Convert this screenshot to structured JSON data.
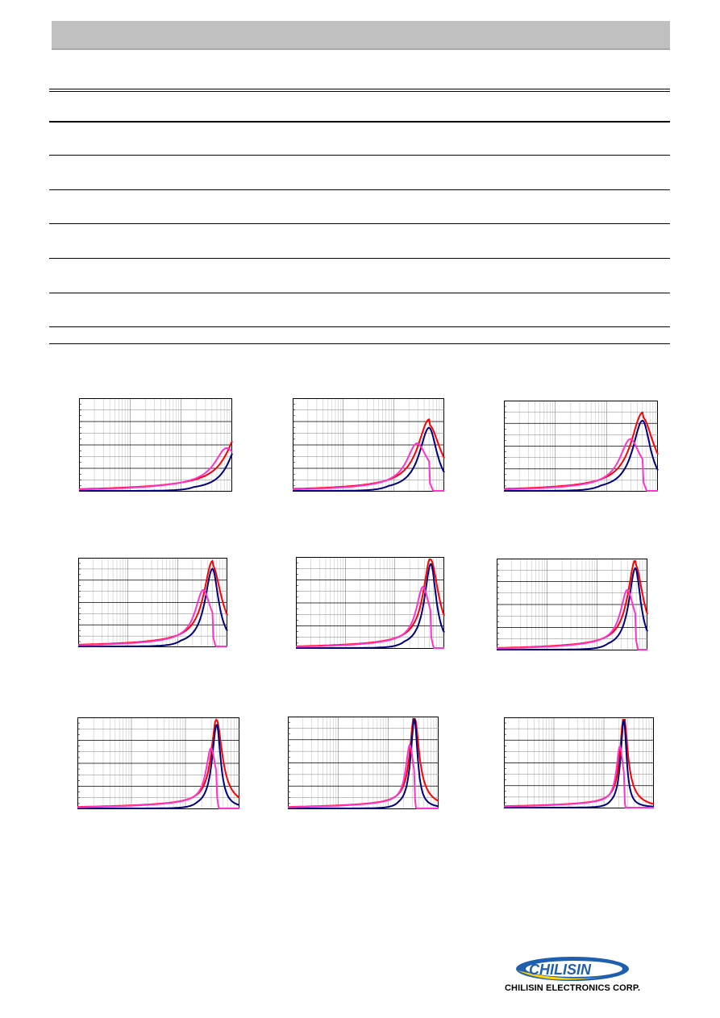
{
  "company": {
    "logo_word": "CHILISIN",
    "name": "CHILISIN ELECTRONICS CORP."
  },
  "colors": {
    "header_band": "#c0c0c0",
    "series_red": "#ff0000",
    "series_navy": "#000080",
    "series_magenta": "#ff33cc",
    "logo_blue": "#1f5fb0",
    "logo_yellow": "#ffd200"
  },
  "chart_data": [
    {
      "type": "line",
      "peak": 1.05,
      "tail": 1.0,
      "amp": 0.55,
      "width": 0.1,
      "xscale": "log",
      "grid": "horizontal+log-vertical"
    },
    {
      "type": "line",
      "peak": 0.9,
      "tail": 1.0,
      "amp": 0.7,
      "width": 0.09,
      "xscale": "log",
      "grid": "horizontal+log-vertical"
    },
    {
      "type": "line",
      "peak": 0.9,
      "tail": 1.0,
      "amp": 0.8,
      "width": 0.09,
      "xscale": "log",
      "grid": "horizontal+log-vertical"
    },
    {
      "type": "line",
      "peak": 0.9,
      "tail": 1.0,
      "amp": 0.9,
      "width": 0.07,
      "xscale": "log",
      "grid": "horizontal+log-vertical"
    },
    {
      "type": "line",
      "peak": 0.91,
      "tail": 1.0,
      "amp": 0.95,
      "width": 0.06,
      "xscale": "log",
      "grid": "horizontal+log-vertical"
    },
    {
      "type": "line",
      "peak": 0.92,
      "tail": 1.0,
      "amp": 0.92,
      "width": 0.06,
      "xscale": "log",
      "grid": "horizontal+log-vertical"
    },
    {
      "type": "line",
      "peak": 0.86,
      "tail": 1.0,
      "amp": 0.95,
      "width": 0.04,
      "xscale": "log",
      "grid": "horizontal+log-vertical"
    },
    {
      "type": "line",
      "peak": 0.84,
      "tail": 1.0,
      "amp": 1.0,
      "width": 0.035,
      "xscale": "log",
      "grid": "horizontal+log-vertical"
    },
    {
      "type": "line",
      "peak": 0.8,
      "tail": 1.0,
      "amp": 1.0,
      "width": 0.03,
      "xscale": "log",
      "grid": "horizontal+log-vertical"
    }
  ]
}
